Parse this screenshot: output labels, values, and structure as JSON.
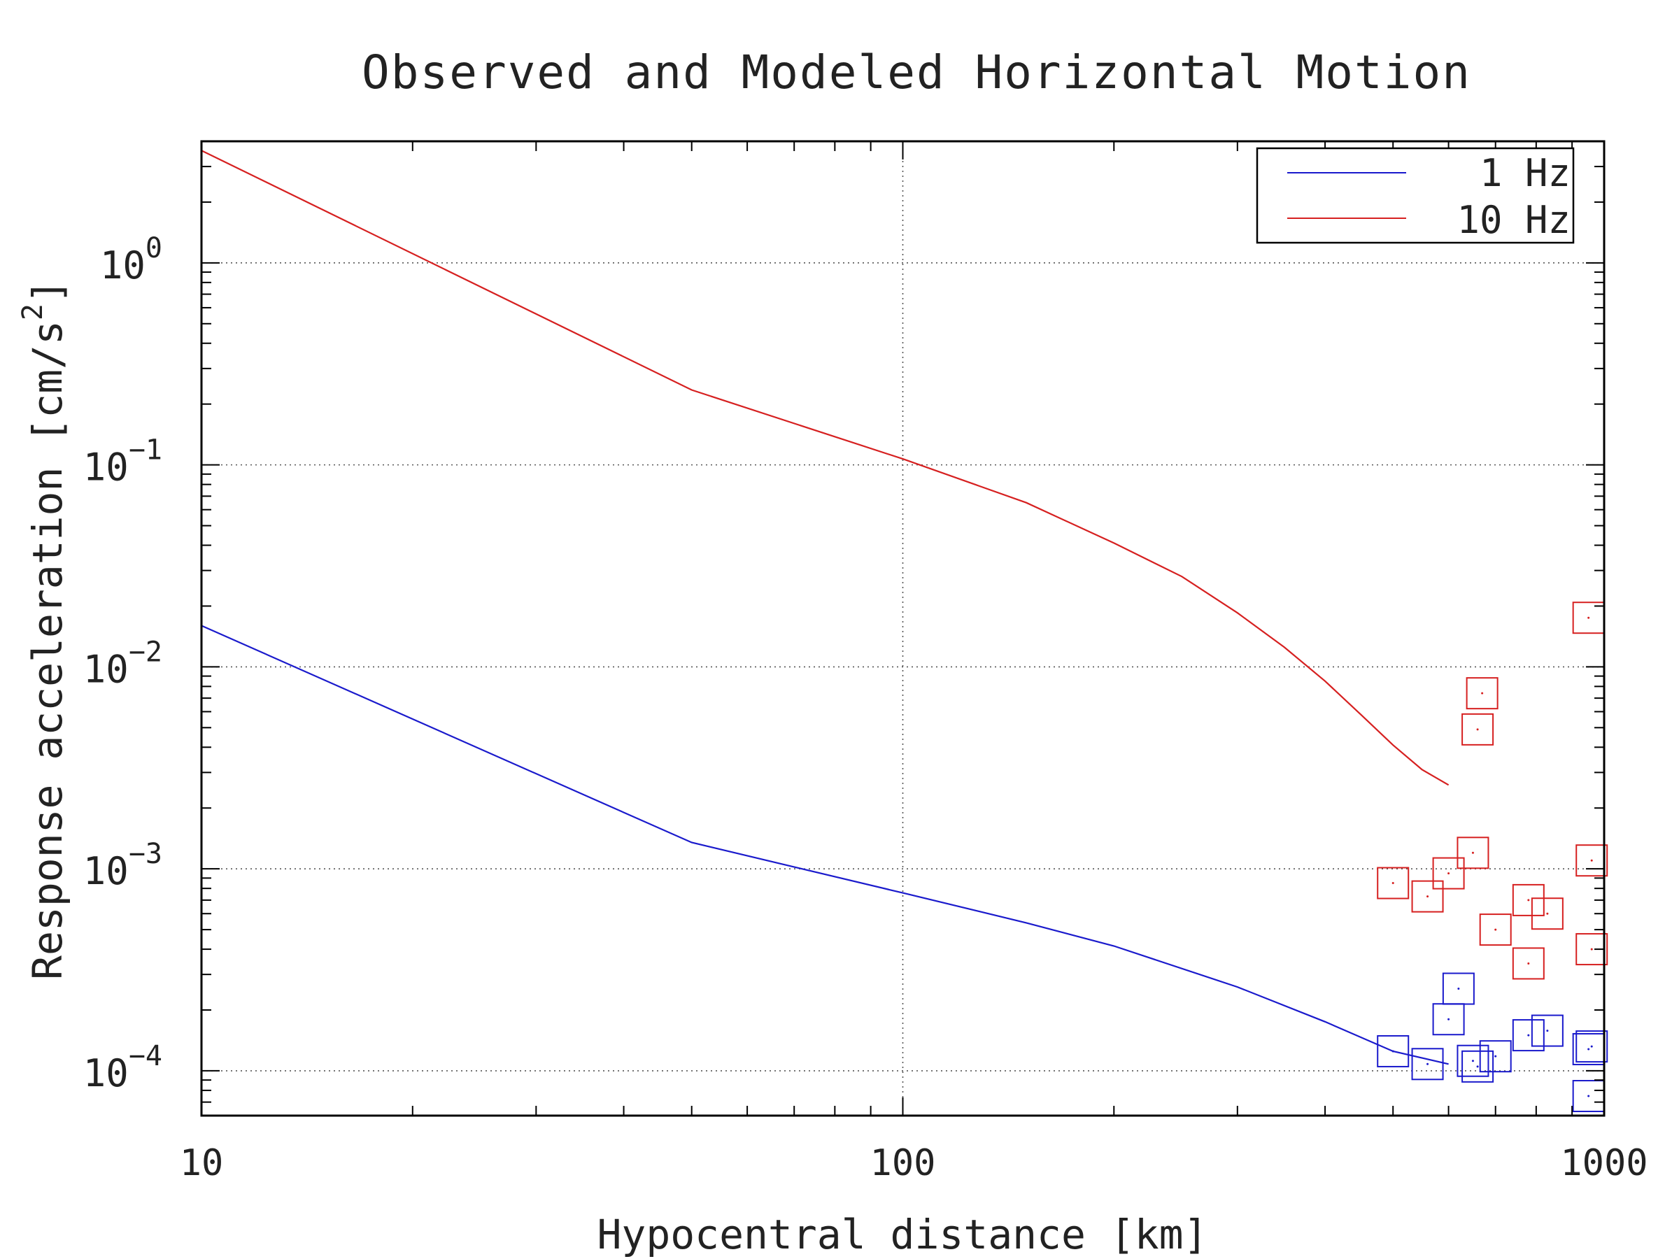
{
  "chart_data": {
    "type": "line",
    "title": "Observed and Modeled Horizontal Motion",
    "xlabel": "Hypocentral distance [km]",
    "ylabel_text": "Response acceleration [cm/s",
    "ylabel_exponent": "2",
    "ylabel_close": "]",
    "xscale": "log",
    "yscale": "log",
    "xlim": [
      10,
      1000
    ],
    "ylim": [
      6e-05,
      4
    ],
    "x_ticks": [
      {
        "value": 10,
        "label": "10"
      },
      {
        "value": 100,
        "label": "100"
      },
      {
        "value": 1000,
        "label": "1000"
      }
    ],
    "y_ticks": [
      {
        "value": 1,
        "base": "10",
        "exp": "0"
      },
      {
        "value": 0.1,
        "base": "10",
        "exp": "−1"
      },
      {
        "value": 0.01,
        "base": "10",
        "exp": "−2"
      },
      {
        "value": 0.001,
        "base": "10",
        "exp": "−3"
      },
      {
        "value": 0.0001,
        "base": "10",
        "exp": "−4"
      }
    ],
    "grid": true,
    "legend_position": "top-right",
    "series": [
      {
        "name": "1 Hz",
        "color": "#1a1acc",
        "style": "line",
        "x": [
          10,
          50,
          100,
          150,
          200,
          300,
          400,
          500,
          600
        ],
        "y": [
          0.016,
          0.00135,
          0.00076,
          0.00054,
          0.000415,
          0.00026,
          0.000175,
          0.000125,
          0.000108
        ]
      },
      {
        "name": "10 Hz",
        "color": "#d62020",
        "style": "line",
        "x": [
          10,
          50,
          100,
          150,
          200,
          250,
          300,
          350,
          400,
          450,
          500,
          550,
          600
        ],
        "y": [
          3.6,
          0.235,
          0.107,
          0.065,
          0.041,
          0.028,
          0.0185,
          0.0125,
          0.0085,
          0.0058,
          0.0041,
          0.0031,
          0.0026
        ]
      }
    ],
    "observed": [
      {
        "color": "#1a1acc",
        "x": [
          500,
          560,
          600,
          620,
          650,
          660,
          700,
          780,
          830,
          950,
          950,
          960
        ],
        "y": [
          0.000125,
          0.000108,
          0.00018,
          0.000255,
          0.000112,
          0.000105,
          0.000118,
          0.00015,
          0.000158,
          0.000128,
          7.5e-05,
          0.000132
        ]
      },
      {
        "color": "#d62020",
        "x": [
          500,
          560,
          600,
          650,
          660,
          670,
          700,
          780,
          780,
          830,
          950,
          960,
          960
        ],
        "y": [
          0.00085,
          0.00073,
          0.00095,
          0.0012,
          0.0049,
          0.0074,
          0.0005,
          0.00034,
          0.0007,
          0.0006,
          0.0175,
          0.0011,
          0.0004
        ]
      }
    ]
  }
}
